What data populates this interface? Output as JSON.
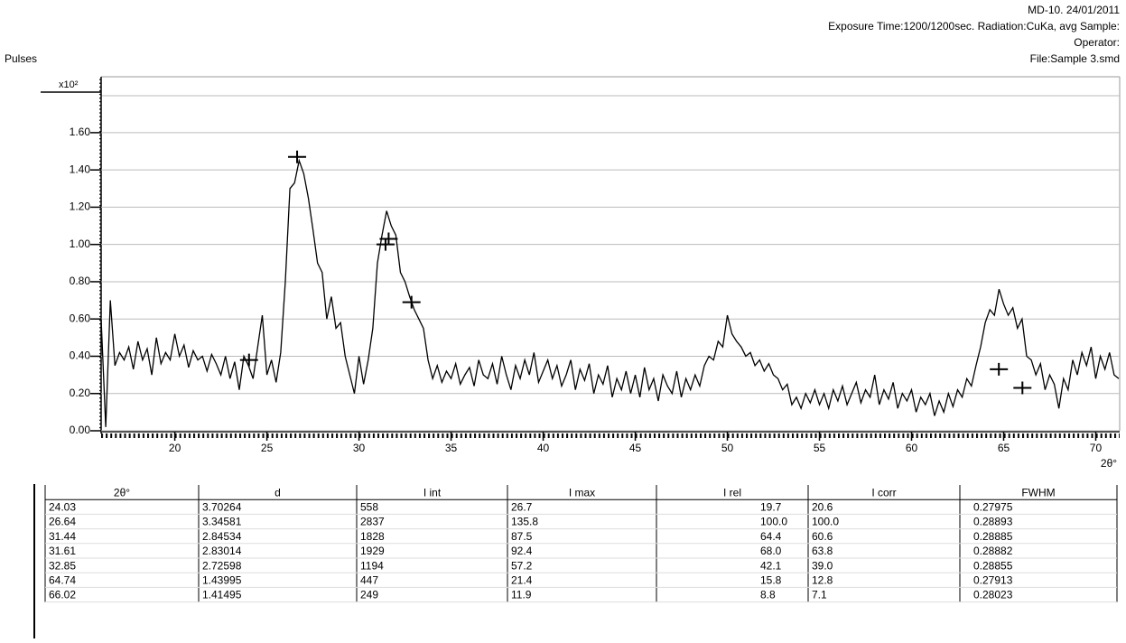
{
  "chart_data": {
    "type": "line",
    "header": [
      "MD-10.  24/01/2011",
      "Exposure Time:1200/1200sec.  Radiation:CuKa, avg   Sample:",
      "Operator:",
      "File:Sample 3.smd"
    ],
    "y_label": "Pulses",
    "y_unit": "x10²",
    "x_label": "2θ°",
    "color": "#000000",
    "xlim": [
      16,
      71.3
    ],
    "ylim": [
      0,
      1.9
    ],
    "xticks": [
      20,
      25,
      30,
      35,
      40,
      45,
      50,
      55,
      60,
      65,
      70
    ],
    "yticks": [
      {
        "value": 0,
        "label": "0.00"
      },
      {
        "value": 0.2,
        "label": "0.20"
      },
      {
        "value": 0.4,
        "label": "0.40"
      },
      {
        "value": 0.6,
        "label": "0.60"
      },
      {
        "value": 0.8,
        "label": "0.80"
      },
      {
        "value": 1.0,
        "label": "1.00"
      },
      {
        "value": 1.2,
        "label": "1.20"
      },
      {
        "value": 1.4,
        "label": "1.40"
      },
      {
        "value": 1.6,
        "label": "1.60"
      }
    ],
    "grid": true,
    "x": [
      16,
      16.25,
      16.5,
      16.75,
      17,
      17.25,
      17.5,
      17.75,
      18,
      18.25,
      18.5,
      18.75,
      19,
      19.25,
      19.5,
      19.75,
      20,
      20.25,
      20.5,
      20.75,
      21,
      21.25,
      21.5,
      21.75,
      22,
      22.25,
      22.5,
      22.75,
      23,
      23.25,
      23.5,
      23.75,
      24,
      24.25,
      24.5,
      24.75,
      25,
      25.25,
      25.5,
      25.75,
      26,
      26.25,
      26.5,
      26.75,
      27,
      27.25,
      27.5,
      27.75,
      28,
      28.25,
      28.5,
      28.75,
      29,
      29.25,
      29.5,
      29.75,
      30,
      30.25,
      30.5,
      30.75,
      31,
      31.25,
      31.5,
      31.75,
      32,
      32.25,
      32.5,
      32.75,
      33,
      33.25,
      33.5,
      33.75,
      34,
      34.25,
      34.5,
      34.75,
      35,
      35.25,
      35.5,
      35.75,
      36,
      36.25,
      36.5,
      36.75,
      37,
      37.25,
      37.5,
      37.75,
      38,
      38.25,
      38.5,
      38.75,
      39,
      39.25,
      39.5,
      39.75,
      40,
      40.25,
      40.5,
      40.75,
      41,
      41.25,
      41.5,
      41.75,
      42,
      42.25,
      42.5,
      42.75,
      43,
      43.25,
      43.5,
      43.75,
      44,
      44.25,
      44.5,
      44.75,
      45,
      45.25,
      45.5,
      45.75,
      46,
      46.25,
      46.5,
      46.75,
      47,
      47.25,
      47.5,
      47.75,
      48,
      48.25,
      48.5,
      48.75,
      49,
      49.25,
      49.5,
      49.75,
      50,
      50.25,
      50.5,
      50.75,
      51,
      51.25,
      51.5,
      51.75,
      52,
      52.25,
      52.5,
      52.75,
      53,
      53.25,
      53.5,
      53.75,
      54,
      54.25,
      54.5,
      54.75,
      55,
      55.25,
      55.5,
      55.75,
      56,
      56.25,
      56.5,
      56.75,
      57,
      57.25,
      57.5,
      57.75,
      58,
      58.25,
      58.5,
      58.75,
      59,
      59.25,
      59.5,
      59.75,
      60,
      60.25,
      60.5,
      60.75,
      61,
      61.25,
      61.5,
      61.75,
      62,
      62.25,
      62.5,
      62.75,
      63,
      63.25,
      63.5,
      63.75,
      64,
      64.25,
      64.5,
      64.75,
      65,
      65.25,
      65.5,
      65.75,
      66,
      66.25,
      66.5,
      66.75,
      67,
      67.25,
      67.5,
      67.75,
      68,
      68.25,
      68.5,
      68.75,
      69,
      69.25,
      69.5,
      69.75,
      70,
      70.25,
      70.5,
      70.75,
      71,
      71.25
    ],
    "values": [
      0.6,
      0.02,
      0.7,
      0.35,
      0.42,
      0.38,
      0.45,
      0.33,
      0.48,
      0.38,
      0.44,
      0.3,
      0.5,
      0.36,
      0.42,
      0.38,
      0.52,
      0.4,
      0.46,
      0.34,
      0.43,
      0.38,
      0.4,
      0.32,
      0.41,
      0.36,
      0.3,
      0.4,
      0.28,
      0.37,
      0.22,
      0.4,
      0.35,
      0.28,
      0.45,
      0.62,
      0.3,
      0.38,
      0.26,
      0.42,
      0.8,
      1.3,
      1.33,
      1.45,
      1.38,
      1.25,
      1.08,
      0.9,
      0.85,
      0.6,
      0.72,
      0.55,
      0.58,
      0.4,
      0.3,
      0.2,
      0.4,
      0.25,
      0.38,
      0.55,
      0.9,
      1.05,
      1.18,
      1.1,
      1.05,
      0.85,
      0.8,
      0.72,
      0.65,
      0.6,
      0.55,
      0.38,
      0.28,
      0.35,
      0.26,
      0.32,
      0.28,
      0.36,
      0.25,
      0.3,
      0.34,
      0.24,
      0.38,
      0.3,
      0.28,
      0.36,
      0.25,
      0.4,
      0.3,
      0.22,
      0.35,
      0.28,
      0.38,
      0.3,
      0.42,
      0.26,
      0.32,
      0.38,
      0.28,
      0.35,
      0.24,
      0.3,
      0.38,
      0.22,
      0.33,
      0.27,
      0.36,
      0.2,
      0.3,
      0.25,
      0.35,
      0.18,
      0.28,
      0.22,
      0.32,
      0.2,
      0.3,
      0.18,
      0.34,
      0.22,
      0.28,
      0.16,
      0.3,
      0.24,
      0.2,
      0.32,
      0.18,
      0.28,
      0.22,
      0.3,
      0.24,
      0.35,
      0.4,
      0.38,
      0.48,
      0.45,
      0.62,
      0.52,
      0.48,
      0.45,
      0.4,
      0.42,
      0.35,
      0.38,
      0.32,
      0.36,
      0.3,
      0.28,
      0.22,
      0.25,
      0.14,
      0.18,
      0.12,
      0.2,
      0.15,
      0.22,
      0.14,
      0.2,
      0.12,
      0.22,
      0.16,
      0.24,
      0.14,
      0.2,
      0.26,
      0.15,
      0.22,
      0.18,
      0.3,
      0.14,
      0.22,
      0.17,
      0.26,
      0.12,
      0.2,
      0.16,
      0.22,
      0.1,
      0.18,
      0.14,
      0.2,
      0.08,
      0.16,
      0.1,
      0.2,
      0.13,
      0.22,
      0.18,
      0.28,
      0.24,
      0.35,
      0.45,
      0.58,
      0.65,
      0.62,
      0.76,
      0.68,
      0.62,
      0.66,
      0.55,
      0.6,
      0.4,
      0.38,
      0.3,
      0.36,
      0.22,
      0.3,
      0.25,
      0.12,
      0.28,
      0.22,
      0.38,
      0.3,
      0.42,
      0.35,
      0.45,
      0.28,
      0.4,
      0.33,
      0.42,
      0.3,
      0.28
    ],
    "peaks": {
      "x": [
        24.03,
        26.64,
        31.44,
        31.61,
        32.85,
        64.74,
        66.02
      ],
      "values": [
        0.38,
        1.47,
        1.0,
        1.03,
        0.69,
        0.33,
        0.23
      ]
    }
  },
  "table": {
    "columns": [
      "2θ°",
      "d",
      "I int",
      "I max",
      "I rel",
      "I corr",
      "FWHM"
    ],
    "rows": [
      [
        "24.03",
        "3.70264",
        "558",
        "26.7",
        "19.7",
        "20.6",
        "0.27975"
      ],
      [
        "26.64",
        "3.34581",
        "2837",
        "135.8",
        "100.0",
        "100.0",
        "0.28893"
      ],
      [
        "31.44",
        "2.84534",
        "1828",
        "87.5",
        "64.4",
        "60.6",
        "0.28885"
      ],
      [
        "31.61",
        "2.83014",
        "1929",
        "92.4",
        "68.0",
        "63.8",
        "0.28882"
      ],
      [
        "32.85",
        "2.72598",
        "1194",
        "57.2",
        "42.1",
        "39.0",
        "0.28855"
      ],
      [
        "64.74",
        "1.43995",
        "447",
        "21.4",
        "15.8",
        "12.8",
        "0.27913"
      ],
      [
        "66.02",
        "1.41495",
        "249",
        "11.9",
        "8.8",
        "7.1",
        "0.28023"
      ]
    ]
  }
}
